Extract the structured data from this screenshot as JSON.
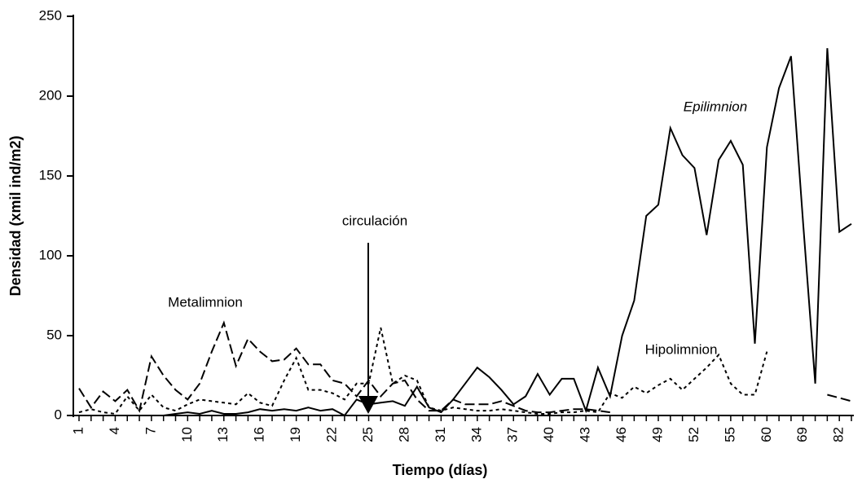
{
  "chart_data": {
    "type": "line",
    "x_label": "Tiempo (días)",
    "y_label": "Densidad (xmil ind/m2)",
    "annotation": "circulación",
    "categories": [
      1,
      null,
      null,
      4,
      null,
      null,
      7,
      null,
      null,
      10,
      null,
      null,
      13,
      null,
      null,
      16,
      null,
      null,
      19,
      null,
      null,
      22,
      null,
      null,
      25,
      null,
      null,
      28,
      null,
      null,
      31,
      null,
      null,
      34,
      null,
      null,
      37,
      null,
      null,
      40,
      null,
      null,
      43,
      null,
      null,
      46,
      null,
      null,
      49,
      null,
      null,
      52,
      null,
      null,
      55,
      null,
      null,
      60,
      null,
      null,
      69,
      null,
      null,
      82,
      null
    ],
    "ylim": [
      0,
      250
    ],
    "yticks": [
      0,
      50,
      100,
      150,
      200,
      250
    ],
    "series": [
      {
        "name": "Epilimnion",
        "color": "#000000",
        "dash": "solid",
        "values": [
          0,
          0,
          0,
          0,
          0,
          0,
          0,
          0,
          1,
          2,
          1,
          3,
          1,
          1,
          2,
          4,
          3,
          4,
          3,
          5,
          3,
          4,
          0,
          10,
          7,
          8,
          9,
          6,
          18,
          5,
          2,
          10,
          20,
          30,
          24,
          16,
          7,
          12,
          26,
          13,
          23,
          23,
          3,
          30,
          12,
          50,
          72,
          125,
          132,
          180,
          163,
          155,
          113,
          160,
          172,
          157,
          45,
          168,
          205,
          225,
          120,
          20,
          230,
          115,
          120
        ]
      },
      {
        "name": "Metalimnion",
        "color": "#000000",
        "dash": "dashed",
        "values": [
          17,
          5,
          15,
          9,
          16,
          3,
          37,
          25,
          16,
          10,
          20,
          40,
          58,
          31,
          48,
          40,
          34,
          35,
          42,
          32,
          32,
          22,
          20,
          12,
          22,
          12,
          20,
          22,
          10,
          3,
          3,
          10,
          7,
          7,
          7,
          9,
          6,
          3,
          2,
          2,
          3,
          4,
          4,
          3,
          2,
          null,
          null,
          null,
          null,
          null,
          null,
          null,
          null,
          null,
          null,
          null,
          null,
          null,
          null,
          null,
          null,
          null,
          13,
          11,
          9
        ]
      },
      {
        "name": "Hipolimnion",
        "color": "#000000",
        "dash": "dotted",
        "values": [
          2,
          4,
          2,
          1,
          12,
          3,
          13,
          5,
          3,
          7,
          10,
          9,
          8,
          7,
          14,
          8,
          6,
          22,
          36,
          16,
          16,
          14,
          10,
          20,
          20,
          55,
          20,
          25,
          22,
          5,
          3,
          5,
          4,
          3,
          3,
          4,
          3,
          2,
          1,
          1,
          2,
          2,
          3,
          2,
          14,
          11,
          18,
          14,
          19,
          23,
          16,
          23,
          30,
          38,
          20,
          13,
          13,
          40,
          null,
          null,
          null,
          null,
          null,
          null,
          null
        ]
      }
    ]
  }
}
